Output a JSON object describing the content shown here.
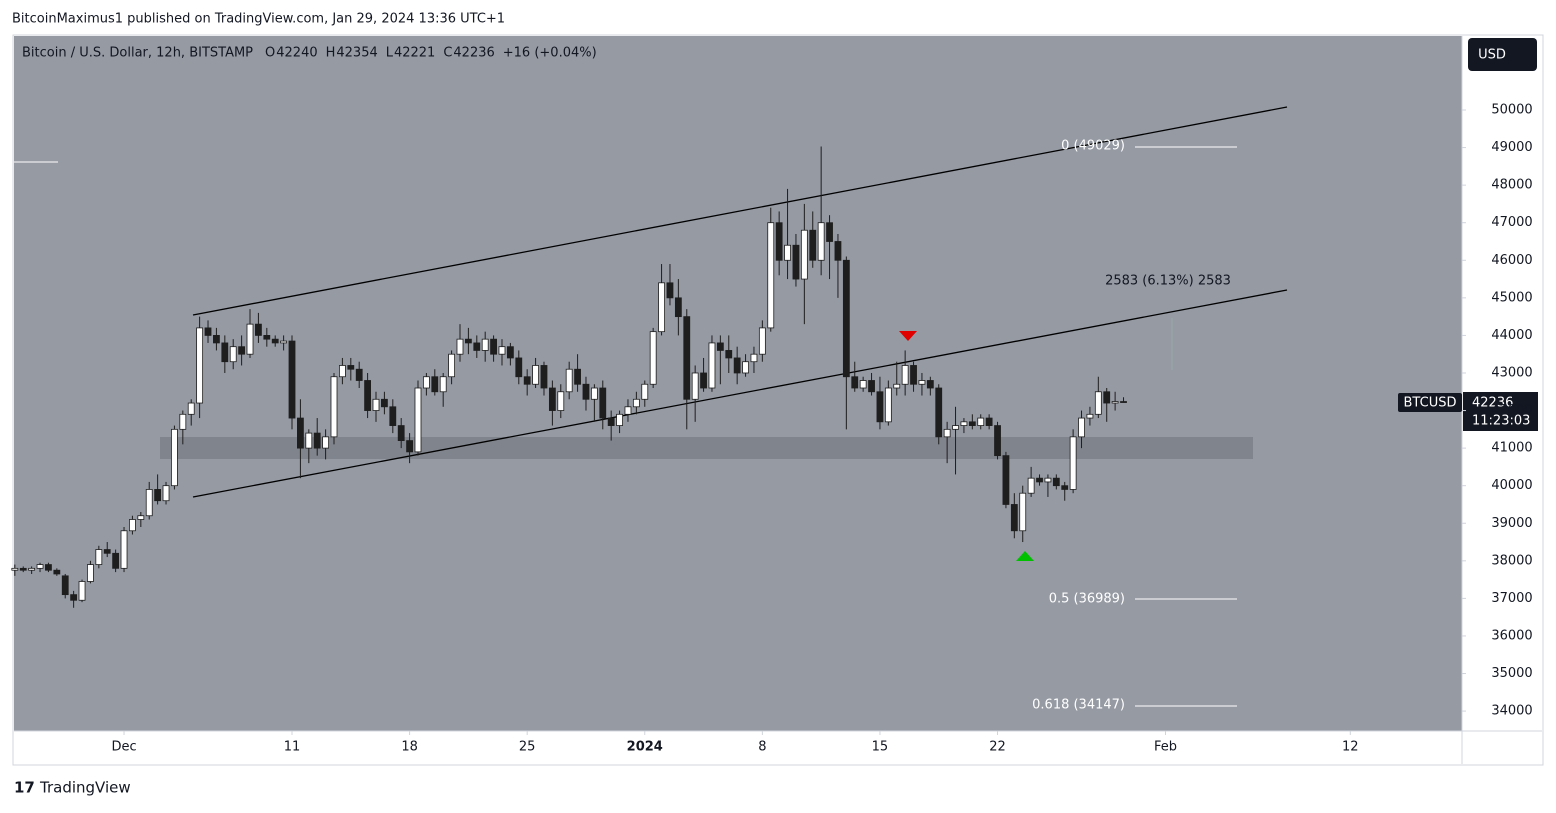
{
  "publisher": "BitcoinMaximus1 published on TradingView.com, Jan 29, 2024 13:36 UTC+1",
  "footer": "TradingView",
  "currency_button": "USD",
  "chart_data": {
    "type": "candlestick",
    "title": "Bitcoin / U.S. Dollar, 12h, BITSTAMP",
    "legend_ohlc": [
      {
        "label": "O",
        "value": "42240"
      },
      {
        "label": "H",
        "value": "42354"
      },
      {
        "label": "L",
        "value": "42221"
      },
      {
        "label": "C",
        "value": "42236"
      }
    ],
    "change": "+16 (+0.04%)",
    "symbol": "BTCUSD",
    "last_price": "42236",
    "countdown": "11:23:03",
    "annotations": {
      "fib_0": "0 (49029)",
      "fib_05": "0.5 (36989)",
      "fib_0618": "0.618 (34147)",
      "measure": "2583 (6.13%) 2583"
    },
    "up_color": "#ffffff",
    "down_color": "#1e1e1e",
    "background": "#959aa3",
    "xlim": [
      -0.1,
      172.3
    ],
    "xticks": [
      {
        "value": 13,
        "label": "Dec"
      },
      {
        "value": 33,
        "label": "11"
      },
      {
        "value": 47,
        "label": "18"
      },
      {
        "value": 61,
        "label": "25"
      },
      {
        "value": 75,
        "label": "2024"
      },
      {
        "value": 89,
        "label": "8"
      },
      {
        "value": 103,
        "label": "15"
      },
      {
        "value": 117,
        "label": "22"
      },
      {
        "value": 137,
        "label": "Feb"
      },
      {
        "value": 159,
        "label": "12"
      }
    ],
    "ylim": [
      33470,
      51970
    ],
    "yticks": [
      34000,
      35000,
      36000,
      37000,
      38000,
      39000,
      40000,
      41000,
      42000,
      43000,
      44000,
      45000,
      46000,
      47000,
      48000,
      49000,
      50000
    ],
    "ohlc": [
      [
        37750,
        37900,
        37600,
        37800
      ],
      [
        37800,
        37850,
        37700,
        37750
      ],
      [
        37750,
        37850,
        37650,
        37800
      ],
      [
        37800,
        37950,
        37700,
        37900
      ],
      [
        37900,
        37950,
        37700,
        37750
      ],
      [
        37750,
        37800,
        37600,
        37650
      ],
      [
        37600,
        37650,
        37000,
        37100
      ],
      [
        37100,
        37200,
        36750,
        36950
      ],
      [
        36950,
        37500,
        36900,
        37450
      ],
      [
        37450,
        38000,
        37400,
        37900
      ],
      [
        37900,
        38400,
        37800,
        38300
      ],
      [
        38300,
        38500,
        38100,
        38200
      ],
      [
        38200,
        38300,
        37700,
        37800
      ],
      [
        37800,
        38900,
        37700,
        38800
      ],
      [
        38800,
        39200,
        38700,
        39100
      ],
      [
        39100,
        39300,
        38900,
        39200
      ],
      [
        39200,
        40100,
        39100,
        39900
      ],
      [
        39900,
        40300,
        39500,
        39600
      ],
      [
        39600,
        40100,
        39500,
        40000
      ],
      [
        40000,
        41600,
        39900,
        41500
      ],
      [
        41500,
        42000,
        41100,
        41900
      ],
      [
        41900,
        42300,
        41600,
        42200
      ],
      [
        42200,
        44500,
        41800,
        44200
      ],
      [
        44200,
        44400,
        43800,
        44000
      ],
      [
        44000,
        44200,
        43600,
        43800
      ],
      [
        43800,
        44000,
        43000,
        43300
      ],
      [
        43300,
        43900,
        43100,
        43700
      ],
      [
        43700,
        44000,
        43200,
        43500
      ],
      [
        43500,
        44700,
        43400,
        44300
      ],
      [
        44300,
        44600,
        43800,
        44000
      ],
      [
        44000,
        44200,
        43700,
        43900
      ],
      [
        43900,
        44000,
        43700,
        43800
      ],
      [
        43800,
        44000,
        43600,
        43850
      ],
      [
        43850,
        44000,
        41500,
        41800
      ],
      [
        41800,
        42300,
        40200,
        41000
      ],
      [
        41000,
        41500,
        40600,
        41400
      ],
      [
        41400,
        41800,
        40800,
        41000
      ],
      [
        41000,
        41500,
        40700,
        41300
      ],
      [
        41300,
        43000,
        41100,
        42900
      ],
      [
        42900,
        43400,
        42700,
        43200
      ],
      [
        43200,
        43400,
        42800,
        43100
      ],
      [
        43100,
        43300,
        42600,
        42800
      ],
      [
        42800,
        43000,
        41800,
        42000
      ],
      [
        42000,
        42500,
        41700,
        42300
      ],
      [
        42300,
        42500,
        41900,
        42100
      ],
      [
        42100,
        42300,
        41400,
        41600
      ],
      [
        41600,
        41800,
        41000,
        41200
      ],
      [
        41200,
        41400,
        40600,
        40900
      ],
      [
        40900,
        42800,
        40800,
        42600
      ],
      [
        42600,
        43000,
        42400,
        42900
      ],
      [
        42900,
        43100,
        42400,
        42500
      ],
      [
        42500,
        43000,
        42100,
        42900
      ],
      [
        42900,
        43600,
        42700,
        43500
      ],
      [
        43500,
        44300,
        43300,
        43900
      ],
      [
        43900,
        44200,
        43500,
        43800
      ],
      [
        43800,
        44000,
        43400,
        43600
      ],
      [
        43600,
        44100,
        43300,
        43900
      ],
      [
        43900,
        44000,
        43300,
        43500
      ],
      [
        43500,
        43900,
        43200,
        43700
      ],
      [
        43700,
        43800,
        43200,
        43400
      ],
      [
        43400,
        43600,
        42700,
        42900
      ],
      [
        42900,
        43100,
        42400,
        42700
      ],
      [
        42700,
        43400,
        42600,
        43200
      ],
      [
        43200,
        43300,
        42400,
        42600
      ],
      [
        42600,
        42800,
        41600,
        42000
      ],
      [
        42000,
        42700,
        41800,
        42500
      ],
      [
        42500,
        43300,
        42300,
        43100
      ],
      [
        43100,
        43500,
        42500,
        42700
      ],
      [
        42700,
        42900,
        42000,
        42300
      ],
      [
        42300,
        42700,
        41700,
        42600
      ],
      [
        42600,
        42800,
        41500,
        41800
      ],
      [
        41800,
        42000,
        41200,
        41600
      ],
      [
        41600,
        42000,
        41400,
        41900
      ],
      [
        41900,
        42300,
        41700,
        42100
      ],
      [
        42100,
        42500,
        41900,
        42300
      ],
      [
        42300,
        42800,
        42100,
        42700
      ],
      [
        42700,
        44200,
        42600,
        44100
      ],
      [
        44100,
        45900,
        44000,
        45400
      ],
      [
        45400,
        45900,
        44800,
        45000
      ],
      [
        45000,
        45500,
        44000,
        44500
      ],
      [
        44500,
        44700,
        41500,
        42300
      ],
      [
        42300,
        43200,
        41700,
        43000
      ],
      [
        43000,
        43400,
        42500,
        42600
      ],
      [
        42600,
        44000,
        42500,
        43800
      ],
      [
        43800,
        44000,
        42700,
        43600
      ],
      [
        43600,
        44000,
        43000,
        43400
      ],
      [
        43400,
        43700,
        42700,
        43000
      ],
      [
        43000,
        43500,
        42900,
        43300
      ],
      [
        43300,
        43700,
        43000,
        43500
      ],
      [
        43500,
        44400,
        43300,
        44200
      ],
      [
        44200,
        47400,
        44100,
        47000
      ],
      [
        47000,
        47300,
        45600,
        46000
      ],
      [
        46000,
        47900,
        45500,
        46400
      ],
      [
        46400,
        46700,
        45300,
        45500
      ],
      [
        45500,
        47500,
        44300,
        46800
      ],
      [
        46800,
        47300,
        45800,
        46000
      ],
      [
        46000,
        49029,
        45600,
        47000
      ],
      [
        47000,
        47200,
        45500,
        46500
      ],
      [
        46500,
        46700,
        45000,
        46000
      ],
      [
        46000,
        46100,
        41500,
        42900
      ],
      [
        42900,
        43300,
        42500,
        42600
      ],
      [
        42600,
        42900,
        42500,
        42800
      ],
      [
        42800,
        43000,
        42400,
        42500
      ],
      [
        42500,
        42900,
        41500,
        41700
      ],
      [
        41700,
        42800,
        41600,
        42600
      ],
      [
        42600,
        43300,
        42400,
        42700
      ],
      [
        42700,
        43600,
        42400,
        43200
      ],
      [
        43200,
        43300,
        42500,
        42700
      ],
      [
        42700,
        43000,
        42400,
        42800
      ],
      [
        42800,
        42900,
        42400,
        42600
      ],
      [
        42600,
        42700,
        41100,
        41300
      ],
      [
        41300,
        41700,
        40600,
        41500
      ],
      [
        41500,
        42100,
        40300,
        41600
      ],
      [
        41600,
        41800,
        41400,
        41700
      ],
      [
        41700,
        41900,
        41500,
        41600
      ],
      [
        41600,
        41900,
        41500,
        41800
      ],
      [
        41800,
        41900,
        41500,
        41600
      ],
      [
        41600,
        41700,
        40700,
        40800
      ],
      [
        40800,
        40900,
        39400,
        39500
      ],
      [
        39500,
        39800,
        38600,
        38800
      ],
      [
        38800,
        40000,
        38500,
        39800
      ],
      [
        39800,
        40500,
        39700,
        40200
      ],
      [
        40200,
        40300,
        40000,
        40100
      ],
      [
        40100,
        40300,
        39700,
        40200
      ],
      [
        40200,
        40300,
        39900,
        40000
      ],
      [
        40000,
        40100,
        39600,
        39900
      ],
      [
        39900,
        41500,
        39800,
        41300
      ],
      [
        41300,
        42000,
        41000,
        41800
      ],
      [
        41800,
        42100,
        41600,
        41900
      ],
      [
        41900,
        42900,
        41800,
        42500
      ],
      [
        42500,
        42600,
        41700,
        42200
      ],
      [
        42200,
        42500,
        42000,
        42240
      ],
      [
        42240,
        42354,
        42221,
        42236
      ]
    ]
  }
}
